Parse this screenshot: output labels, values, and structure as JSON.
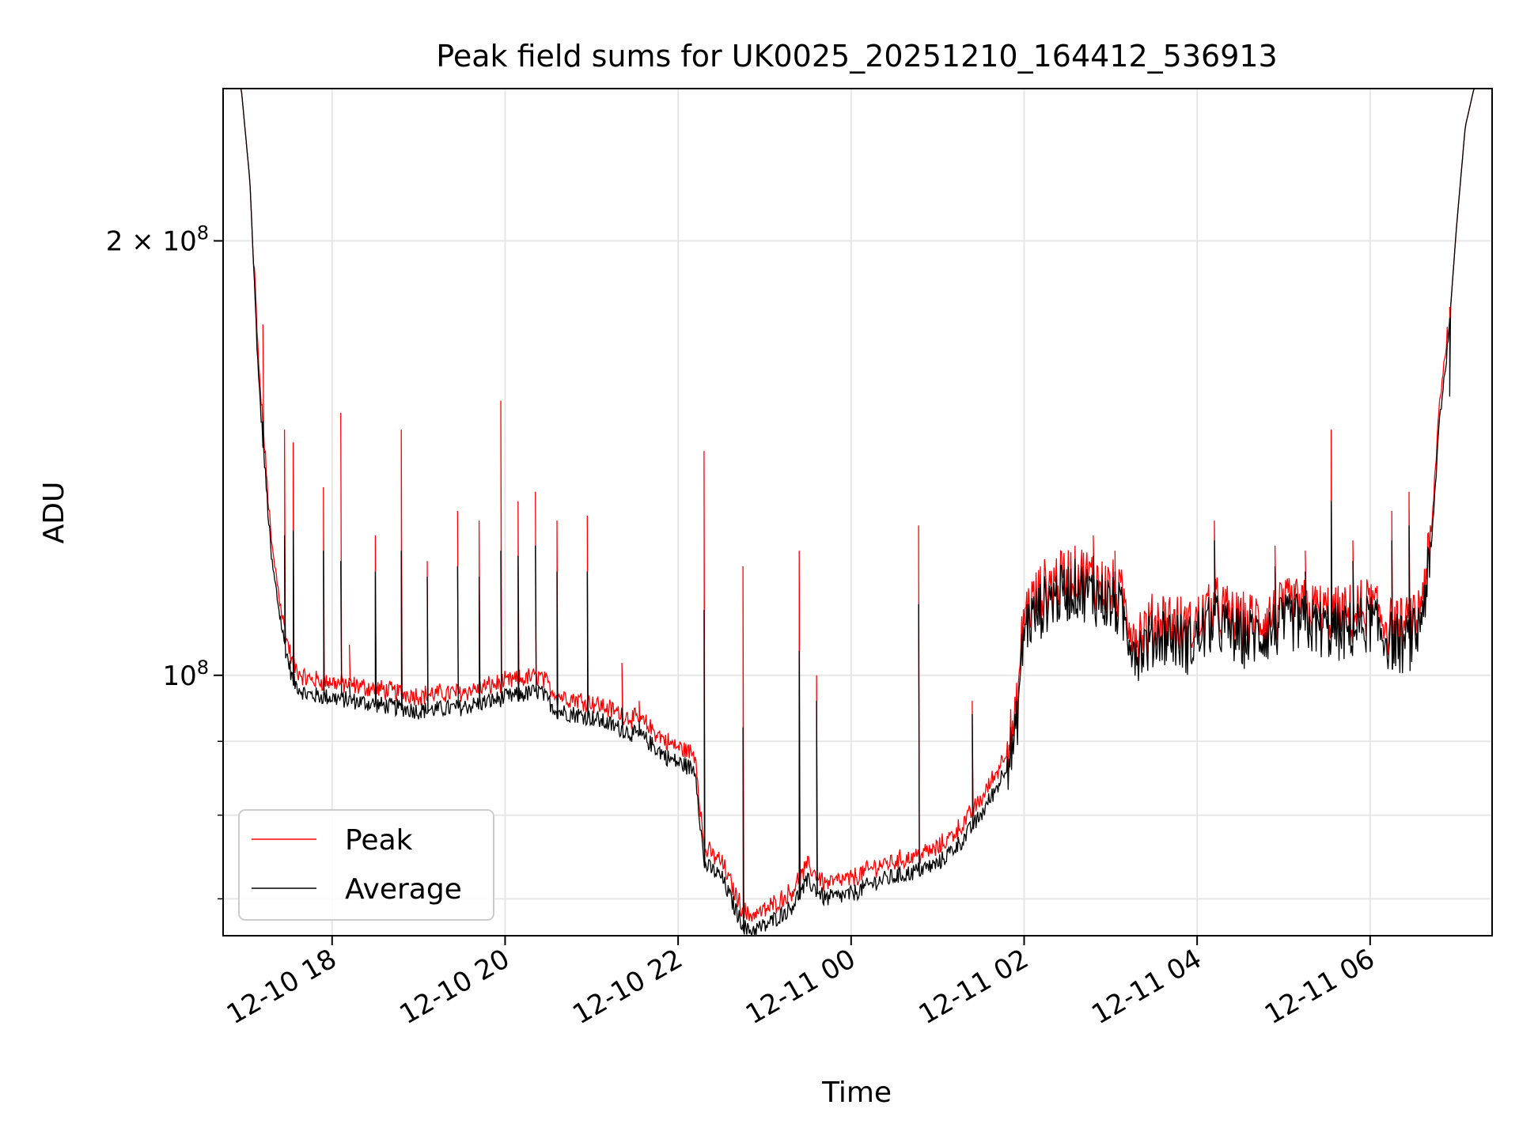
{
  "chart_data": {
    "type": "line",
    "title": "Peak field sums for UK0025_20251210_164412_536913",
    "xlabel": "Time",
    "ylabel": "ADU",
    "yscale": "log",
    "ylim": [
      66000000,
      255000000
    ],
    "xlim_hours": [
      16.74,
      31.41
    ],
    "grid": true,
    "legend_position": "lower-left",
    "x_ticks": [
      {
        "label": "12-10 18",
        "hours": 18
      },
      {
        "label": "12-10 20",
        "hours": 20
      },
      {
        "label": "12-10 22",
        "hours": 22
      },
      {
        "label": "12-11 00",
        "hours": 24
      },
      {
        "label": "12-11 02",
        "hours": 26
      },
      {
        "label": "12-11 04",
        "hours": 28
      },
      {
        "label": "12-11 06",
        "hours": 30
      }
    ],
    "y_major_ticks": [
      {
        "mantissa": "2 × 10",
        "exponent": "8",
        "value": 200000000
      },
      {
        "mantissa": "10",
        "exponent": "8",
        "value": 100000000
      }
    ],
    "y_minor_ticks": [
      70000000,
      80000000,
      90000000,
      300000000
    ],
    "series": [
      {
        "name": "Peak",
        "color": "#ff0000"
      },
      {
        "name": "Average",
        "color": "#000000"
      }
    ],
    "baseline": {
      "hours": [
        16.74,
        16.95,
        17.05,
        17.15,
        17.3,
        17.45,
        17.55,
        17.7,
        18.0,
        18.5,
        19.0,
        19.5,
        20.0,
        20.4,
        20.6,
        21.0,
        21.4,
        21.6,
        21.9,
        22.2,
        22.3,
        22.5,
        22.7,
        22.8,
        23.0,
        23.3,
        23.5,
        23.7,
        24.0,
        24.3,
        24.7,
        25.0,
        25.3,
        25.5,
        25.7,
        25.9,
        26.0,
        26.3,
        26.6,
        26.9,
        27.1,
        27.3,
        27.6,
        27.9,
        28.2,
        28.5,
        28.8,
        29.1,
        29.4,
        29.7,
        30.0,
        30.2,
        30.4,
        30.55,
        30.7,
        30.8,
        30.9,
        31.0,
        31.1,
        31.2,
        31.41
      ],
      "values": [
        255000000,
        255000000,
        220000000,
        160000000,
        120000000,
        105000000,
        99000000,
        97000000,
        96500000,
        95500000,
        94500000,
        95000000,
        96500000,
        97500000,
        94500000,
        93500000,
        91500000,
        90500000,
        87500000,
        86000000,
        74000000,
        72500000,
        68000000,
        66500000,
        67000000,
        69000000,
        72000000,
        70000000,
        70500000,
        72000000,
        73000000,
        74000000,
        77000000,
        80000000,
        84000000,
        90000000,
        108000000,
        113000000,
        115000000,
        113000000,
        111000000,
        104000000,
        107000000,
        105000000,
        109000000,
        106000000,
        107000000,
        109000000,
        108000000,
        107000000,
        109000000,
        106000000,
        105000000,
        107000000,
        120000000,
        150000000,
        170000000,
        205000000,
        240000000,
        255000000,
        255000000
      ],
      "peak_offset_ratio": 1.02,
      "noise_ratio": 0.014
    },
    "peak_spikes": [
      {
        "hours": 17.2,
        "peak": 175000000,
        "average": 150000000
      },
      {
        "hours": 17.45,
        "peak": 148000000,
        "average": 125000000
      },
      {
        "hours": 17.55,
        "peak": 145000000,
        "average": 126000000
      },
      {
        "hours": 17.9,
        "peak": 135000000,
        "average": 122000000
      },
      {
        "hours": 18.1,
        "peak": 152000000,
        "average": 120000000
      },
      {
        "hours": 18.2,
        "peak": 105000000,
        "average": 99000000
      },
      {
        "hours": 18.5,
        "peak": 125000000,
        "average": 118000000
      },
      {
        "hours": 18.8,
        "peak": 148000000,
        "average": 122000000
      },
      {
        "hours": 19.1,
        "peak": 120000000,
        "average": 117000000
      },
      {
        "hours": 19.45,
        "peak": 130000000,
        "average": 119000000
      },
      {
        "hours": 19.7,
        "peak": 128000000,
        "average": 117000000
      },
      {
        "hours": 19.95,
        "peak": 155000000,
        "average": 122000000
      },
      {
        "hours": 20.15,
        "peak": 132000000,
        "average": 121000000
      },
      {
        "hours": 20.35,
        "peak": 134000000,
        "average": 123000000
      },
      {
        "hours": 20.6,
        "peak": 128000000,
        "average": 118000000
      },
      {
        "hours": 20.95,
        "peak": 129000000,
        "average": 118000000
      },
      {
        "hours": 21.35,
        "peak": 102000000,
        "average": 95000000
      },
      {
        "hours": 21.55,
        "peak": 96000000,
        "average": 93000000
      },
      {
        "hours": 22.3,
        "peak": 143000000,
        "average": 111000000
      },
      {
        "hours": 22.75,
        "peak": 119000000,
        "average": 92000000
      },
      {
        "hours": 23.4,
        "peak": 122000000,
        "average": 104000000
      },
      {
        "hours": 23.6,
        "peak": 100000000,
        "average": 96000000
      },
      {
        "hours": 24.78,
        "peak": 127000000,
        "average": 112000000
      },
      {
        "hours": 25.4,
        "peak": 96000000,
        "average": 94000000
      },
      {
        "hours": 26.8,
        "peak": 125000000,
        "average": 121000000
      },
      {
        "hours": 27.05,
        "peak": 122000000,
        "average": 118000000
      },
      {
        "hours": 28.2,
        "peak": 128000000,
        "average": 124000000
      },
      {
        "hours": 28.9,
        "peak": 123000000,
        "average": 119000000
      },
      {
        "hours": 29.25,
        "peak": 122000000,
        "average": 118000000
      },
      {
        "hours": 29.55,
        "peak": 148000000,
        "average": 132000000
      },
      {
        "hours": 29.8,
        "peak": 124000000,
        "average": 120000000
      },
      {
        "hours": 30.25,
        "peak": 130000000,
        "average": 124000000
      },
      {
        "hours": 30.45,
        "peak": 134000000,
        "average": 127000000
      },
      {
        "hours": 30.92,
        "peak": 180000000,
        "average": 156000000
      }
    ]
  }
}
